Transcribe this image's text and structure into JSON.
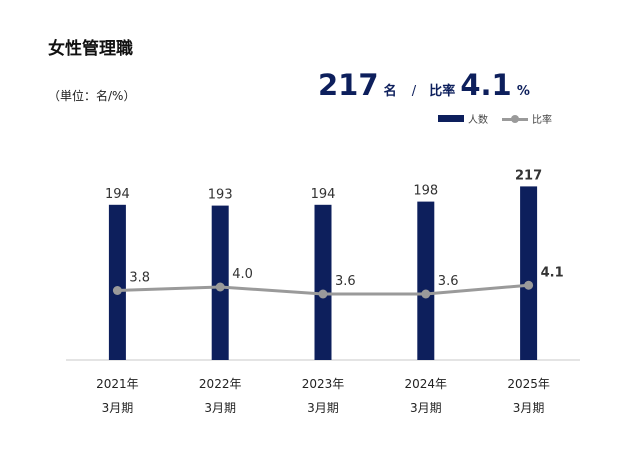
{
  "title": "女性管理職",
  "unit_label": "（単位：名/%）",
  "headline": {
    "count": "217",
    "count_unit": "名",
    "separator": "/",
    "ratio_label": "比率",
    "ratio": "4.1",
    "ratio_unit": "%"
  },
  "legend": {
    "bar_label": "人数",
    "line_label": "比率"
  },
  "colors": {
    "bar": "#0d1f5c",
    "line": "#9a9a9a"
  },
  "chart_data": {
    "type": "bar",
    "categories": [
      [
        "2021年",
        "3月期"
      ],
      [
        "2022年",
        "3月期"
      ],
      [
        "2023年",
        "3月期"
      ],
      [
        "2024年",
        "3月期"
      ],
      [
        "2025年",
        "3月期"
      ]
    ],
    "series": [
      {
        "name": "人数",
        "type": "bar",
        "values": [
          194,
          193,
          194,
          198,
          217
        ],
        "labels": [
          "194",
          "193",
          "194",
          "198",
          "217"
        ]
      },
      {
        "name": "比率",
        "type": "line",
        "values": [
          3.8,
          4.0,
          3.6,
          3.6,
          4.1
        ],
        "labels": [
          "3.8",
          "4.0",
          "3.6",
          "3.6",
          "4.1"
        ]
      }
    ],
    "bar_ylim": [
      0,
      250
    ],
    "line_ylim": [
      0,
      10
    ],
    "highlight_last": true,
    "grid": false,
    "legend_position": "top-right"
  }
}
